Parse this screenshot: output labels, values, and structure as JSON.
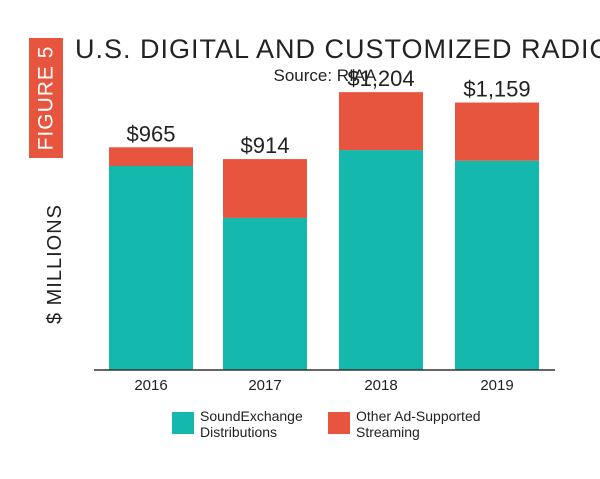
{
  "figure_label": "FIGURE 5",
  "colors": {
    "accent": "#e8553e",
    "teal": "#14b8ad",
    "orange": "#e8553e"
  },
  "chart_data": {
    "type": "bar",
    "stacked": true,
    "title": "U.S. DIGITAL AND CUSTOMIZED RADIO",
    "subtitle": "Source: RIAA",
    "ylabel": "$ MILLIONS",
    "xlabel": "",
    "categories": [
      "2016",
      "2017",
      "2018",
      "2019"
    ],
    "totals_labels": [
      "$965",
      "$914",
      "$1,204",
      "$1,159"
    ],
    "ylim": [
      0,
      1300
    ],
    "grid": false,
    "legend_placement": "bottom",
    "series": [
      {
        "name": "SoundExchange Distributions",
        "values": [
          884,
          659,
          953,
          907
        ],
        "color": "#14b8ad"
      },
      {
        "name": "Other Ad-Supported Streaming",
        "values": [
          81,
          255,
          251,
          252
        ],
        "color": "#e8553e"
      }
    ]
  }
}
